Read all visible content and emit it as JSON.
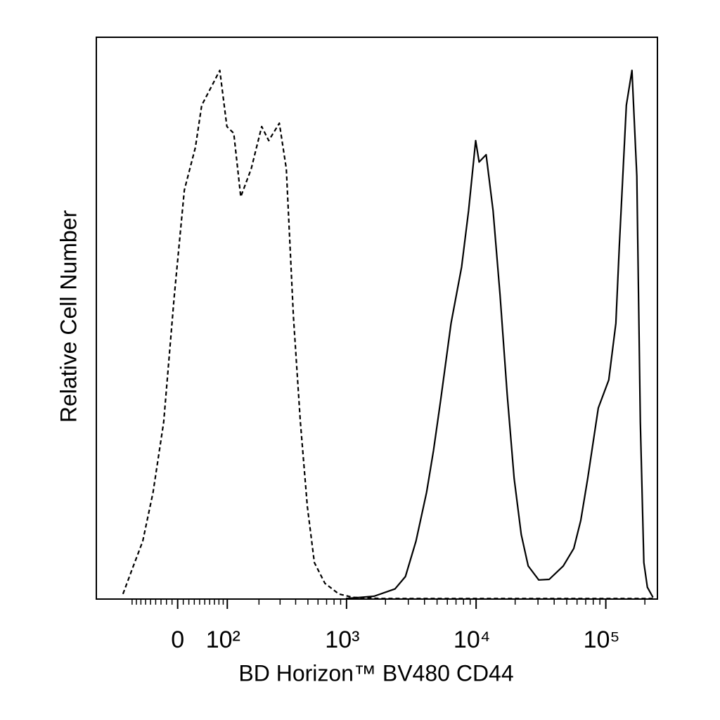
{
  "chart_data": {
    "type": "line",
    "xlabel": "BD Horizon™ BV480 CD44",
    "ylabel": "Relative Cell Number",
    "xscale": "biexponential",
    "xlim": [
      -200,
      250000
    ],
    "ylim": [
      0,
      100
    ],
    "xticks": [
      {
        "value": 0,
        "label": "0"
      },
      {
        "value": 100,
        "label": "10²"
      },
      {
        "value": 1000,
        "label": "10³"
      },
      {
        "value": 10000,
        "label": "10⁴"
      },
      {
        "value": 100000,
        "label": "10⁵"
      }
    ],
    "series": [
      {
        "color": "#000000",
        "dashed": true,
        "x": [
          -113,
          -90,
          -66,
          -45,
          -25,
          -6,
          12,
          32,
          44,
          66,
          82,
          99,
          117,
          137,
          171,
          211,
          242,
          296,
          337,
          384,
          436,
          495,
          562,
          679,
          873,
          1120,
          1850,
          3890,
          13500,
          47000,
          163000,
          237000
        ],
        "values": [
          0.9,
          5.3,
          10.3,
          19,
          31.5,
          54,
          72.8,
          80.4,
          87.9,
          91.6,
          94.1,
          84.1,
          82.9,
          71.6,
          76.6,
          84.1,
          81.6,
          84.7,
          76.6,
          50.3,
          31.5,
          16.5,
          6.5,
          2.8,
          0.9,
          0.3,
          0.1,
          0.1,
          0.1,
          0.1,
          0.1,
          0.1
        ]
      },
      {
        "color": "#000000",
        "dashed": false,
        "x": [
          989,
          1630,
          2370,
          2850,
          3440,
          4150,
          4700,
          5320,
          6410,
          7730,
          8750,
          9920,
          10550,
          11950,
          13530,
          15300,
          17360,
          19650,
          22270,
          25200,
          30400,
          36600,
          47000,
          56600,
          64100,
          72600,
          87500,
          105400,
          119500,
          127100,
          144000,
          159100,
          173500,
          184700,
          196500,
          209200,
          231100
        ],
        "values": [
          0.1,
          0.5,
          1.8,
          4.0,
          10.3,
          19.0,
          26.5,
          35.3,
          49.1,
          59.1,
          69.1,
          81.6,
          77.8,
          79.1,
          69.1,
          54.1,
          36.5,
          21.5,
          11.5,
          5.9,
          3.4,
          3.5,
          5.9,
          9.0,
          14.0,
          21.5,
          34.0,
          39.0,
          49.1,
          62.8,
          87.9,
          94.1,
          75.3,
          31.5,
          6.5,
          2.1,
          0.3
        ]
      }
    ]
  }
}
